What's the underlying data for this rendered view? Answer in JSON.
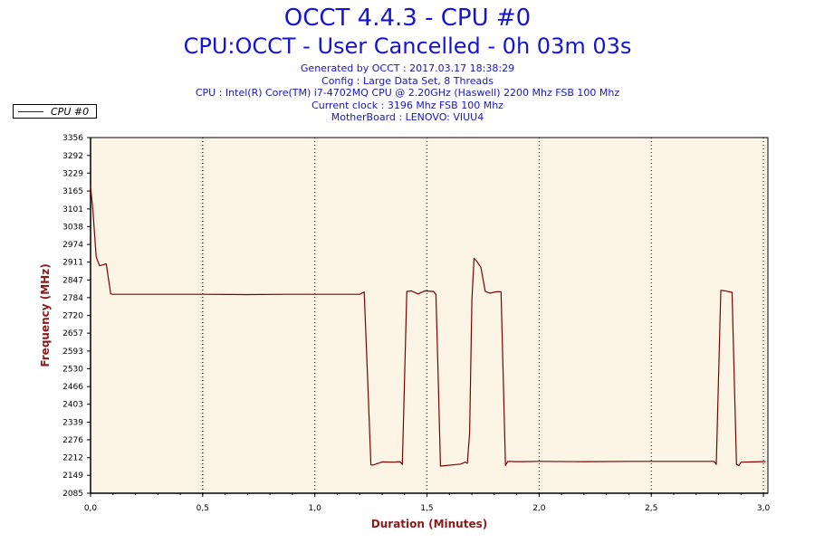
{
  "header": {
    "title": "OCCT 4.4.3 - CPU #0",
    "subtitle": "CPU:OCCT - User Cancelled - 0h 03m 03s",
    "info_lines": [
      "Generated by OCCT : 2017.03.17 18:38:29",
      "Config : Large Data Set, 8 Threads",
      "CPU : Intel(R) Core(TM) i7-4702MQ CPU @ 2.20GHz (Haswell) 2200 Mhz FSB 100 Mhz",
      "Current clock : 3196 Mhz FSB 100 Mhz",
      "MotherBoard : LENOVO: VIUU4"
    ]
  },
  "colors": {
    "title": "#1414d2",
    "plot_background": "#fcf5e6",
    "series": "#800000",
    "axis_label": "#8b1a1a"
  },
  "chart_data": {
    "type": "line",
    "xlabel": "Duration (Minutes)",
    "ylabel": "Frequency (MHz)",
    "xlim": [
      0,
      3.02
    ],
    "ylim": [
      2085,
      3356
    ],
    "x_ticks": [
      "0,0",
      "0,5",
      "1,0",
      "1,5",
      "2,0",
      "2,5",
      "3,0"
    ],
    "x_tick_values": [
      0,
      0.5,
      1.0,
      1.5,
      2.0,
      2.5,
      3.0
    ],
    "y_ticks": [
      3356,
      3292,
      3229,
      3165,
      3101,
      3038,
      2974,
      2911,
      2847,
      2784,
      2720,
      2657,
      2593,
      2530,
      2466,
      2403,
      2339,
      2276,
      2212,
      2149,
      2085
    ],
    "grid": "vertical dotted",
    "legend_placement": "top-left",
    "series": [
      {
        "name": "CPU #0",
        "x": [
          0.0,
          0.01,
          0.025,
          0.04,
          0.055,
          0.07,
          0.09,
          0.1,
          0.3,
          0.5,
          0.7,
          0.87,
          1.0,
          1.1,
          1.2,
          1.22,
          1.235,
          1.25,
          1.26,
          1.3,
          1.35,
          1.38,
          1.39,
          1.4,
          1.41,
          1.43,
          1.46,
          1.49,
          1.53,
          1.54,
          1.55,
          1.56,
          1.65,
          1.67,
          1.68,
          1.69,
          1.7,
          1.71,
          1.72,
          1.74,
          1.76,
          1.78,
          1.81,
          1.83,
          1.84,
          1.85,
          1.86,
          1.9,
          2.0,
          2.2,
          2.4,
          2.6,
          2.78,
          2.79,
          2.8,
          2.81,
          2.83,
          2.86,
          2.87,
          2.88,
          2.89,
          2.9,
          2.95,
          3.01
        ],
        "y": [
          3180,
          3100,
          2930,
          2898,
          2901,
          2905,
          2797,
          2796,
          2796,
          2796,
          2795,
          2796,
          2796,
          2796,
          2796,
          2804,
          2500,
          2186,
          2186,
          2197,
          2196,
          2198,
          2188,
          2500,
          2806,
          2808,
          2797,
          2808,
          2806,
          2795,
          2500,
          2182,
          2189,
          2196,
          2192,
          2300,
          2775,
          2925,
          2916,
          2893,
          2806,
          2800,
          2805,
          2805,
          2500,
          2184,
          2199,
          2198,
          2199,
          2198,
          2199,
          2199,
          2199,
          2188,
          2500,
          2810,
          2808,
          2803,
          2500,
          2188,
          2184,
          2196,
          2197,
          2198
        ]
      }
    ]
  }
}
